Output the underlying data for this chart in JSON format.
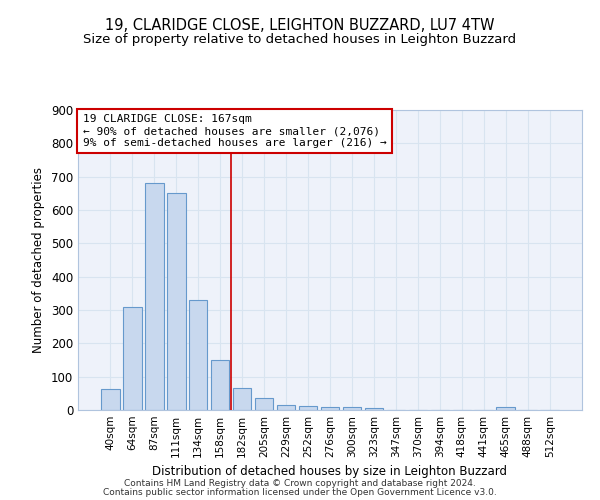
{
  "title_line1": "19, CLARIDGE CLOSE, LEIGHTON BUZZARD, LU7 4TW",
  "title_line2": "Size of property relative to detached houses in Leighton Buzzard",
  "xlabel": "Distribution of detached houses by size in Leighton Buzzard",
  "ylabel": "Number of detached properties",
  "bar_labels": [
    "40sqm",
    "64sqm",
    "87sqm",
    "111sqm",
    "134sqm",
    "158sqm",
    "182sqm",
    "205sqm",
    "229sqm",
    "252sqm",
    "276sqm",
    "300sqm",
    "323sqm",
    "347sqm",
    "370sqm",
    "394sqm",
    "418sqm",
    "441sqm",
    "465sqm",
    "488sqm",
    "512sqm"
  ],
  "bar_values": [
    63,
    310,
    682,
    650,
    330,
    150,
    65,
    37,
    15,
    12,
    10,
    8,
    5,
    0,
    0,
    0,
    0,
    0,
    8,
    0,
    0
  ],
  "bar_color": "#c8d8ee",
  "bar_edge_color": "#6699cc",
  "red_line_x": 5.5,
  "annotation_line1": "19 CLARIDGE CLOSE: 167sqm",
  "annotation_line2": "← 90% of detached houses are smaller (2,076)",
  "annotation_line3": "9% of semi-detached houses are larger (216) →",
  "ylim": [
    0,
    900
  ],
  "yticks": [
    0,
    100,
    200,
    300,
    400,
    500,
    600,
    700,
    800,
    900
  ],
  "grid_color": "#d8e4f0",
  "bg_color": "#eef2fa",
  "footer_line1": "Contains HM Land Registry data © Crown copyright and database right 2024.",
  "footer_line2": "Contains public sector information licensed under the Open Government Licence v3.0.",
  "title_fontsize": 10.5,
  "subtitle_fontsize": 9.5
}
